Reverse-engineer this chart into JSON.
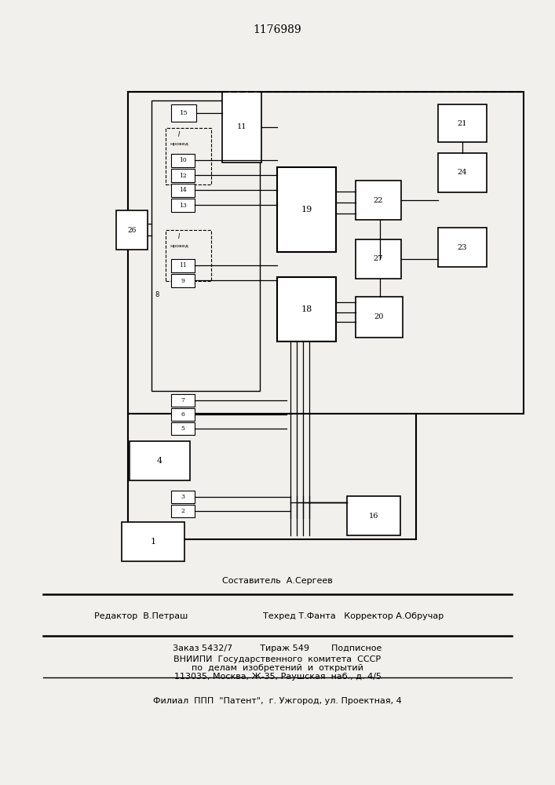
{
  "title": "1176989",
  "bg_color": "#f2f0ec",
  "footer": {
    "line1": "Составитель  А.Сергеев",
    "line2a": "Редактор  В.Петраш",
    "line2b": "Техред Т.Фанта   Корректор А.Обручар",
    "line3": "Заказ 5432/7          Тираж 549        Подписное",
    "line4": "ВНИИПИ  Государственного  комитета  СССР",
    "line5": "по  делам  изобретений  и  открытий",
    "line6": "113035, Москва, Ж-35, Раушская  наб., д. 4/5",
    "line7": "Филиал  ППП  \"Патент\",  г. Ужгород, ул. Проектная, 4"
  }
}
